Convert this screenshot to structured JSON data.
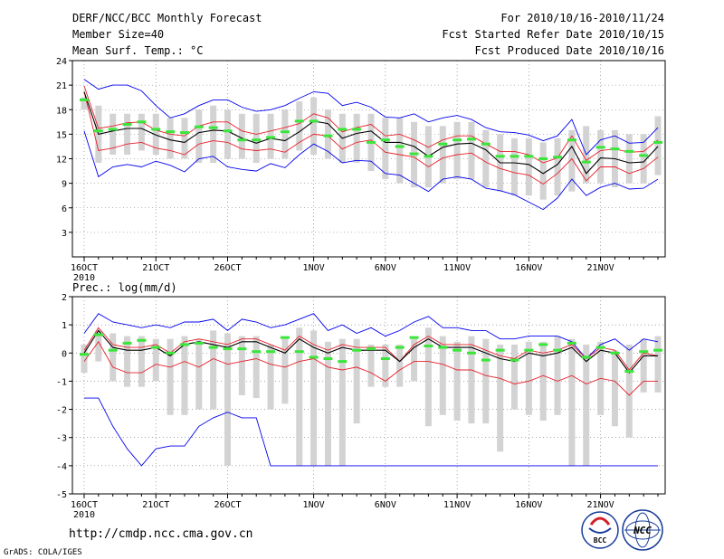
{
  "header": {
    "left": [
      "DERF/NCC/BCC Monthly Forecast",
      "Member Size=40",
      "Mean Surf. Temp.: °C"
    ],
    "right": [
      "For 2010/10/16-2010/11/24",
      "Fcst Started Refer Date 2010/10/15",
      "Fcst Produced Date 2010/10/16"
    ]
  },
  "footer": {
    "url": "http://cmdp.ncc.cma.gov.cn",
    "credit": "GrADS: COLA/IGES",
    "logo_left_text": "BCC",
    "logo_right_text": "NCC"
  },
  "colors": {
    "box": "#d3d3d3",
    "mean": "#000000",
    "inner": "#e8202a",
    "outer": "#0000ee",
    "marker": "#39e639",
    "grid": "#707070",
    "logo_blue": "#1a3c9a",
    "logo_red": "#d4202a"
  },
  "chart_data": [
    {
      "type": "line",
      "title": "Mean Surf. Temp.: °C",
      "ylim": [
        0,
        24
      ],
      "yticks": [
        3,
        6,
        9,
        12,
        15,
        18,
        21,
        24
      ],
      "x_tick_labels": [
        "16OCT",
        "21OCT",
        "26OCT",
        "1NOV",
        "6NOV",
        "11NOV",
        "16NOV",
        "21NOV"
      ],
      "x_tick_index": [
        0,
        5,
        10,
        16,
        21,
        26,
        31,
        36
      ],
      "year_label": "2010",
      "series": [
        {
          "name": "box_top",
          "values": [
            19.5,
            18.5,
            17.5,
            17.5,
            17.5,
            17.5,
            17,
            17,
            18,
            18.5,
            18,
            17.5,
            17.5,
            17.5,
            18,
            19,
            19.5,
            18,
            17.5,
            17.5,
            17.5,
            17,
            17,
            16.5,
            16,
            16,
            16.5,
            16.5,
            15.5,
            15,
            14.5,
            14.5,
            14,
            14.5,
            15.5,
            16,
            15.5,
            15.5,
            15,
            15,
            17.2
          ]
        },
        {
          "name": "box_bottom",
          "values": [
            18,
            11.5,
            12.5,
            12.5,
            13,
            12.5,
            12,
            12,
            11.5,
            11.5,
            12,
            12,
            11.5,
            12,
            12,
            13,
            12.5,
            12,
            11.5,
            11.5,
            10.5,
            9.5,
            9,
            8.5,
            8.5,
            9,
            9.5,
            9.5,
            8.5,
            8,
            7.5,
            7.5,
            7,
            7.5,
            8,
            9,
            9,
            8.5,
            9,
            9,
            10
          ]
        },
        {
          "name": "outer_max",
          "values": [
            21.7,
            20.5,
            21.0,
            21.0,
            20.3,
            18.5,
            17.0,
            17.5,
            18.5,
            19.2,
            19.2,
            18.3,
            17.8,
            18.0,
            18.5,
            19.4,
            20.2,
            20.0,
            18.5,
            18.9,
            18.3,
            17.1,
            17.0,
            17.5,
            16.5,
            17.0,
            17.3,
            16.8,
            15.8,
            15.3,
            15.2,
            14.9,
            14.2,
            14.8,
            16.8,
            12.5,
            14.3,
            14.8,
            13.9,
            14.0,
            15.8
          ]
        },
        {
          "name": "inner_max",
          "values": [
            20.9,
            15.7,
            16.0,
            16.4,
            16.5,
            15.5,
            15.0,
            14.8,
            16.0,
            16.5,
            16.5,
            15.4,
            15.0,
            15.4,
            15.8,
            16.3,
            17.5,
            17.0,
            15.3,
            15.8,
            16.2,
            14.8,
            15.0,
            14.3,
            13.4,
            14.3,
            14.8,
            14.8,
            13.8,
            12.9,
            12.9,
            12.5,
            11.5,
            12.1,
            14.8,
            11.8,
            13.0,
            13.2,
            12.8,
            12.9,
            14.3
          ]
        },
        {
          "name": "mean",
          "values": [
            20.2,
            15.0,
            15.4,
            15.7,
            15.7,
            14.9,
            14.3,
            14.0,
            15.2,
            15.5,
            15.4,
            14.5,
            13.9,
            14.5,
            14.2,
            15.3,
            16.6,
            16.3,
            14.5,
            15.1,
            15.4,
            14.0,
            14.0,
            13.5,
            12.3,
            13.4,
            13.8,
            13.9,
            13.1,
            11.5,
            11.5,
            11.3,
            10.2,
            11.3,
            13.5,
            10.2,
            12.1,
            12.0,
            11.5,
            11.6,
            13.5
          ]
        },
        {
          "name": "inner_min",
          "values": [
            20.2,
            13.0,
            13.3,
            13.8,
            14.0,
            13.3,
            13.0,
            12.5,
            13.8,
            14.2,
            14.0,
            13.2,
            13.0,
            13.2,
            12.8,
            14.0,
            15.0,
            14.8,
            13.2,
            14.0,
            14.3,
            12.8,
            12.5,
            12.2,
            11.0,
            12.1,
            12.5,
            12.7,
            11.6,
            10.8,
            10.3,
            10.0,
            8.9,
            10.2,
            12.0,
            9.3,
            11.0,
            11.0,
            10.2,
            10.8,
            12.2
          ]
        },
        {
          "name": "outer_min",
          "values": [
            15.4,
            9.8,
            11.0,
            11.3,
            11.0,
            11.7,
            11.2,
            10.4,
            12.0,
            12.3,
            11.0,
            10.7,
            10.5,
            11.4,
            10.9,
            12.5,
            13.8,
            12.9,
            11.5,
            11.8,
            11.7,
            10.2,
            10.0,
            9.0,
            8.0,
            9.5,
            9.8,
            9.5,
            8.4,
            8.1,
            7.6,
            6.7,
            5.8,
            7.2,
            9.5,
            7.5,
            8.5,
            9.0,
            8.3,
            8.4,
            9.5
          ]
        },
        {
          "name": "markers",
          "values": [
            19.2,
            15.4,
            15.6,
            16.2,
            16.5,
            15.6,
            15.3,
            15.2,
            15.9,
            15.8,
            15.4,
            14.3,
            14.3,
            14.6,
            15.3,
            16.6,
            16.6,
            14.8,
            15.6,
            15.6,
            14.0,
            14.3,
            13.5,
            12.6,
            12.3,
            13.8,
            14.3,
            14.4,
            13.8,
            12.3,
            12.3,
            12.3,
            12.0,
            12.2,
            14.3,
            11.6,
            13.4,
            13.2,
            12.9,
            12.4,
            14.0
          ]
        }
      ]
    },
    {
      "type": "line",
      "title": "Prec.: log(mm/d)",
      "ylim": [
        -5,
        2
      ],
      "yticks": [
        -5,
        -4,
        -3,
        -2,
        -1,
        0,
        1,
        2
      ],
      "x_tick_labels": [
        "16OCT",
        "21OCT",
        "26OCT",
        "1NOV",
        "6NOV",
        "11NOV",
        "16NOV",
        "21NOV"
      ],
      "x_tick_index": [
        0,
        5,
        10,
        16,
        21,
        26,
        31,
        36
      ],
      "year_label": "2010",
      "series": [
        {
          "name": "box_top",
          "values": [
            0.3,
            0.8,
            0.7,
            0.6,
            0.6,
            0.5,
            0.5,
            0.6,
            0.5,
            0.8,
            0.7,
            0.6,
            0.6,
            0.3,
            0.5,
            0.9,
            0.8,
            0.4,
            0.5,
            0.5,
            0.3,
            0.3,
            0.3,
            0.5,
            0.9,
            0.6,
            0.4,
            0.6,
            0.5,
            0.3,
            0.3,
            0.4,
            0.4,
            0.6,
            0.5,
            0.3,
            0.4,
            0.1,
            0.3,
            0.5,
            0.6
          ]
        },
        {
          "name": "box_bottom",
          "values": [
            -0.7,
            -0.3,
            -1.0,
            -1.2,
            -1.2,
            -1.0,
            -2.2,
            -2.2,
            -2.0,
            -2.0,
            -4.0,
            -1.5,
            -1.6,
            -2.0,
            -1.8,
            -4.0,
            -4.0,
            -4.0,
            -4.0,
            -2.5,
            -1.2,
            -1.2,
            -1.2,
            -1.0,
            -2.6,
            -2.2,
            -2.4,
            -2.5,
            -2.5,
            -3.5,
            -2.0,
            -2.2,
            -2.4,
            -2.2,
            -4.0,
            -4.0,
            -2.2,
            -2.6,
            -3.0,
            -1.4,
            -1.4
          ]
        },
        {
          "name": "outer_max",
          "values": [
            0.7,
            1.4,
            1.1,
            1.0,
            0.9,
            1.0,
            0.9,
            1.1,
            1.1,
            1.2,
            0.8,
            1.2,
            1.1,
            0.9,
            1.0,
            1.2,
            1.4,
            0.8,
            1.0,
            0.7,
            0.9,
            0.6,
            0.8,
            1.1,
            1.3,
            0.9,
            0.9,
            0.8,
            0.8,
            0.5,
            0.5,
            0.6,
            0.6,
            0.6,
            0.4,
            -0.2,
            0.3,
            0.5,
            0.1,
            0.5,
            0.4
          ]
        },
        {
          "name": "inner_max",
          "values": [
            0.1,
            0.9,
            0.3,
            0.2,
            0.2,
            0.3,
            0.0,
            0.4,
            0.5,
            0.4,
            0.3,
            0.5,
            0.5,
            0.3,
            0.1,
            0.6,
            0.3,
            0.1,
            0.3,
            0.2,
            0.2,
            0.2,
            -0.3,
            0.3,
            0.6,
            0.3,
            0.3,
            0.3,
            0.1,
            -0.1,
            -0.2,
            0.1,
            0.0,
            0.1,
            0.3,
            -0.2,
            0.2,
            0.1,
            -0.6,
            0.0,
            -0.1
          ]
        },
        {
          "name": "mean",
          "values": [
            0.0,
            0.8,
            0.2,
            0.1,
            0.1,
            0.2,
            -0.1,
            0.3,
            0.4,
            0.3,
            0.2,
            0.4,
            0.4,
            0.2,
            0.0,
            0.5,
            0.2,
            0.0,
            0.2,
            0.1,
            0.1,
            0.1,
            -0.3,
            0.2,
            0.5,
            0.2,
            0.2,
            0.2,
            0.0,
            -0.2,
            -0.3,
            0.0,
            -0.1,
            0.0,
            0.2,
            -0.3,
            0.1,
            0.0,
            -0.7,
            -0.1,
            -0.1
          ]
        },
        {
          "name": "inner_min",
          "values": [
            -0.3,
            0.4,
            -0.5,
            -0.7,
            -0.7,
            -0.4,
            -0.5,
            -0.3,
            -0.5,
            -0.2,
            -0.4,
            -0.3,
            -0.2,
            -0.4,
            -0.5,
            -0.3,
            -0.2,
            -0.5,
            -0.6,
            -0.5,
            -0.7,
            -1.0,
            -0.6,
            -0.3,
            -0.3,
            -0.4,
            -0.6,
            -0.6,
            -0.8,
            -0.9,
            -1.1,
            -1.0,
            -0.8,
            -1.0,
            -0.8,
            -1.1,
            -0.9,
            -1.0,
            -1.5,
            -1.0,
            -1.0
          ]
        },
        {
          "name": "outer_min",
          "values": [
            -1.6,
            -1.6,
            -2.6,
            -3.4,
            -4.0,
            -3.4,
            -3.3,
            -3.3,
            -2.6,
            -2.3,
            -2.1,
            -2.3,
            -2.3,
            -4.0,
            -4.0,
            -4.0,
            -4.0,
            -4.0,
            -4.0,
            -4.0,
            -4.0,
            -4.0,
            -4.0,
            -4.0,
            -4.0,
            -4.0,
            -4.0,
            -4.0,
            -4.0,
            -4.0,
            -4.0,
            -4.0,
            -4.0,
            -4.0,
            -4.0,
            -4.0,
            -4.0,
            -4.0,
            -4.0,
            -4.0,
            -4.0
          ]
        },
        {
          "name": "markers",
          "values": [
            -0.05,
            0.65,
            0.1,
            0.35,
            0.45,
            0.2,
            0.0,
            0.3,
            0.35,
            0.2,
            0.15,
            0.15,
            0.05,
            0.05,
            0.55,
            0.05,
            -0.15,
            -0.2,
            -0.3,
            0.1,
            0.15,
            -0.2,
            0.2,
            0.55,
            0.25,
            0.2,
            0.1,
            0.0,
            -0.25,
            0.1,
            -0.25,
            0.1,
            0.3,
            0.1,
            0.35,
            -0.15,
            0.2,
            0.0,
            -0.65,
            0.05,
            0.1
          ]
        }
      ]
    }
  ]
}
